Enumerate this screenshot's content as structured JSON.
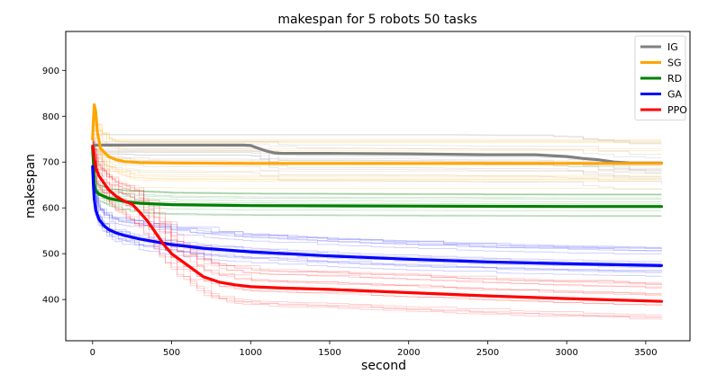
{
  "chart_data": {
    "type": "line",
    "title": "makespan for 5 robots 50 tasks",
    "xlabel": "second",
    "ylabel": "makespan",
    "xlim": [
      -170,
      3780
    ],
    "ylim": [
      310,
      985
    ],
    "xticks": [
      0,
      500,
      1000,
      1500,
      2000,
      2500,
      3000,
      3500
    ],
    "yticks": [
      400,
      500,
      600,
      700,
      800,
      900
    ],
    "grid": false,
    "legend_position": "top-right",
    "series": [
      {
        "name": "IG",
        "color": "#808080",
        "x": [
          0,
          10,
          50,
          200,
          500,
          950,
          1000,
          1050,
          1100,
          1150,
          1200,
          1500,
          2000,
          2500,
          2800,
          2900,
          3000,
          3100,
          3200,
          3300,
          3400,
          3500,
          3600
        ],
        "y": [
          732,
          737,
          737,
          737,
          737,
          737,
          736,
          730,
          724,
          720,
          719,
          719,
          718,
          716,
          716,
          714,
          712,
          708,
          705,
          700,
          698,
          698,
          698
        ]
      },
      {
        "name": "SG",
        "color": "#ffa500",
        "x": [
          0,
          5,
          10,
          20,
          30,
          50,
          100,
          150,
          200,
          300,
          500,
          1000,
          2000,
          3000,
          3600
        ],
        "y": [
          750,
          790,
          825,
          810,
          765,
          730,
          712,
          705,
          701,
          699,
          698,
          697,
          697,
          697,
          697
        ]
      },
      {
        "name": "RD",
        "color": "#008000",
        "x": [
          0,
          5,
          10,
          20,
          40,
          100,
          200,
          300,
          500,
          1000,
          2000,
          3000,
          3600
        ],
        "y": [
          730,
          700,
          655,
          637,
          630,
          621,
          614,
          610,
          607,
          605,
          604,
          603,
          603
        ]
      },
      {
        "name": "GA",
        "color": "#0000ff",
        "x": [
          0,
          5,
          10,
          20,
          40,
          70,
          100,
          150,
          200,
          300,
          400,
          500,
          700,
          1000,
          1500,
          2000,
          2500,
          3000,
          3600
        ],
        "y": [
          690,
          650,
          620,
          595,
          575,
          562,
          553,
          545,
          540,
          532,
          526,
          520,
          512,
          504,
          495,
          488,
          482,
          478,
          474
        ]
      },
      {
        "name": "PPO",
        "color": "#ff0000",
        "x": [
          0,
          10,
          20,
          40,
          60,
          80,
          100,
          150,
          200,
          250,
          300,
          350,
          400,
          450,
          500,
          600,
          700,
          800,
          900,
          1000,
          1200,
          1500,
          2000,
          2500,
          3000,
          3600
        ],
        "y": [
          735,
          712,
          688,
          670,
          660,
          650,
          640,
          625,
          615,
          608,
          590,
          570,
          545,
          520,
          500,
          475,
          450,
          438,
          432,
          428,
          425,
          422,
          415,
          408,
          402,
          396
        ]
      }
    ]
  }
}
